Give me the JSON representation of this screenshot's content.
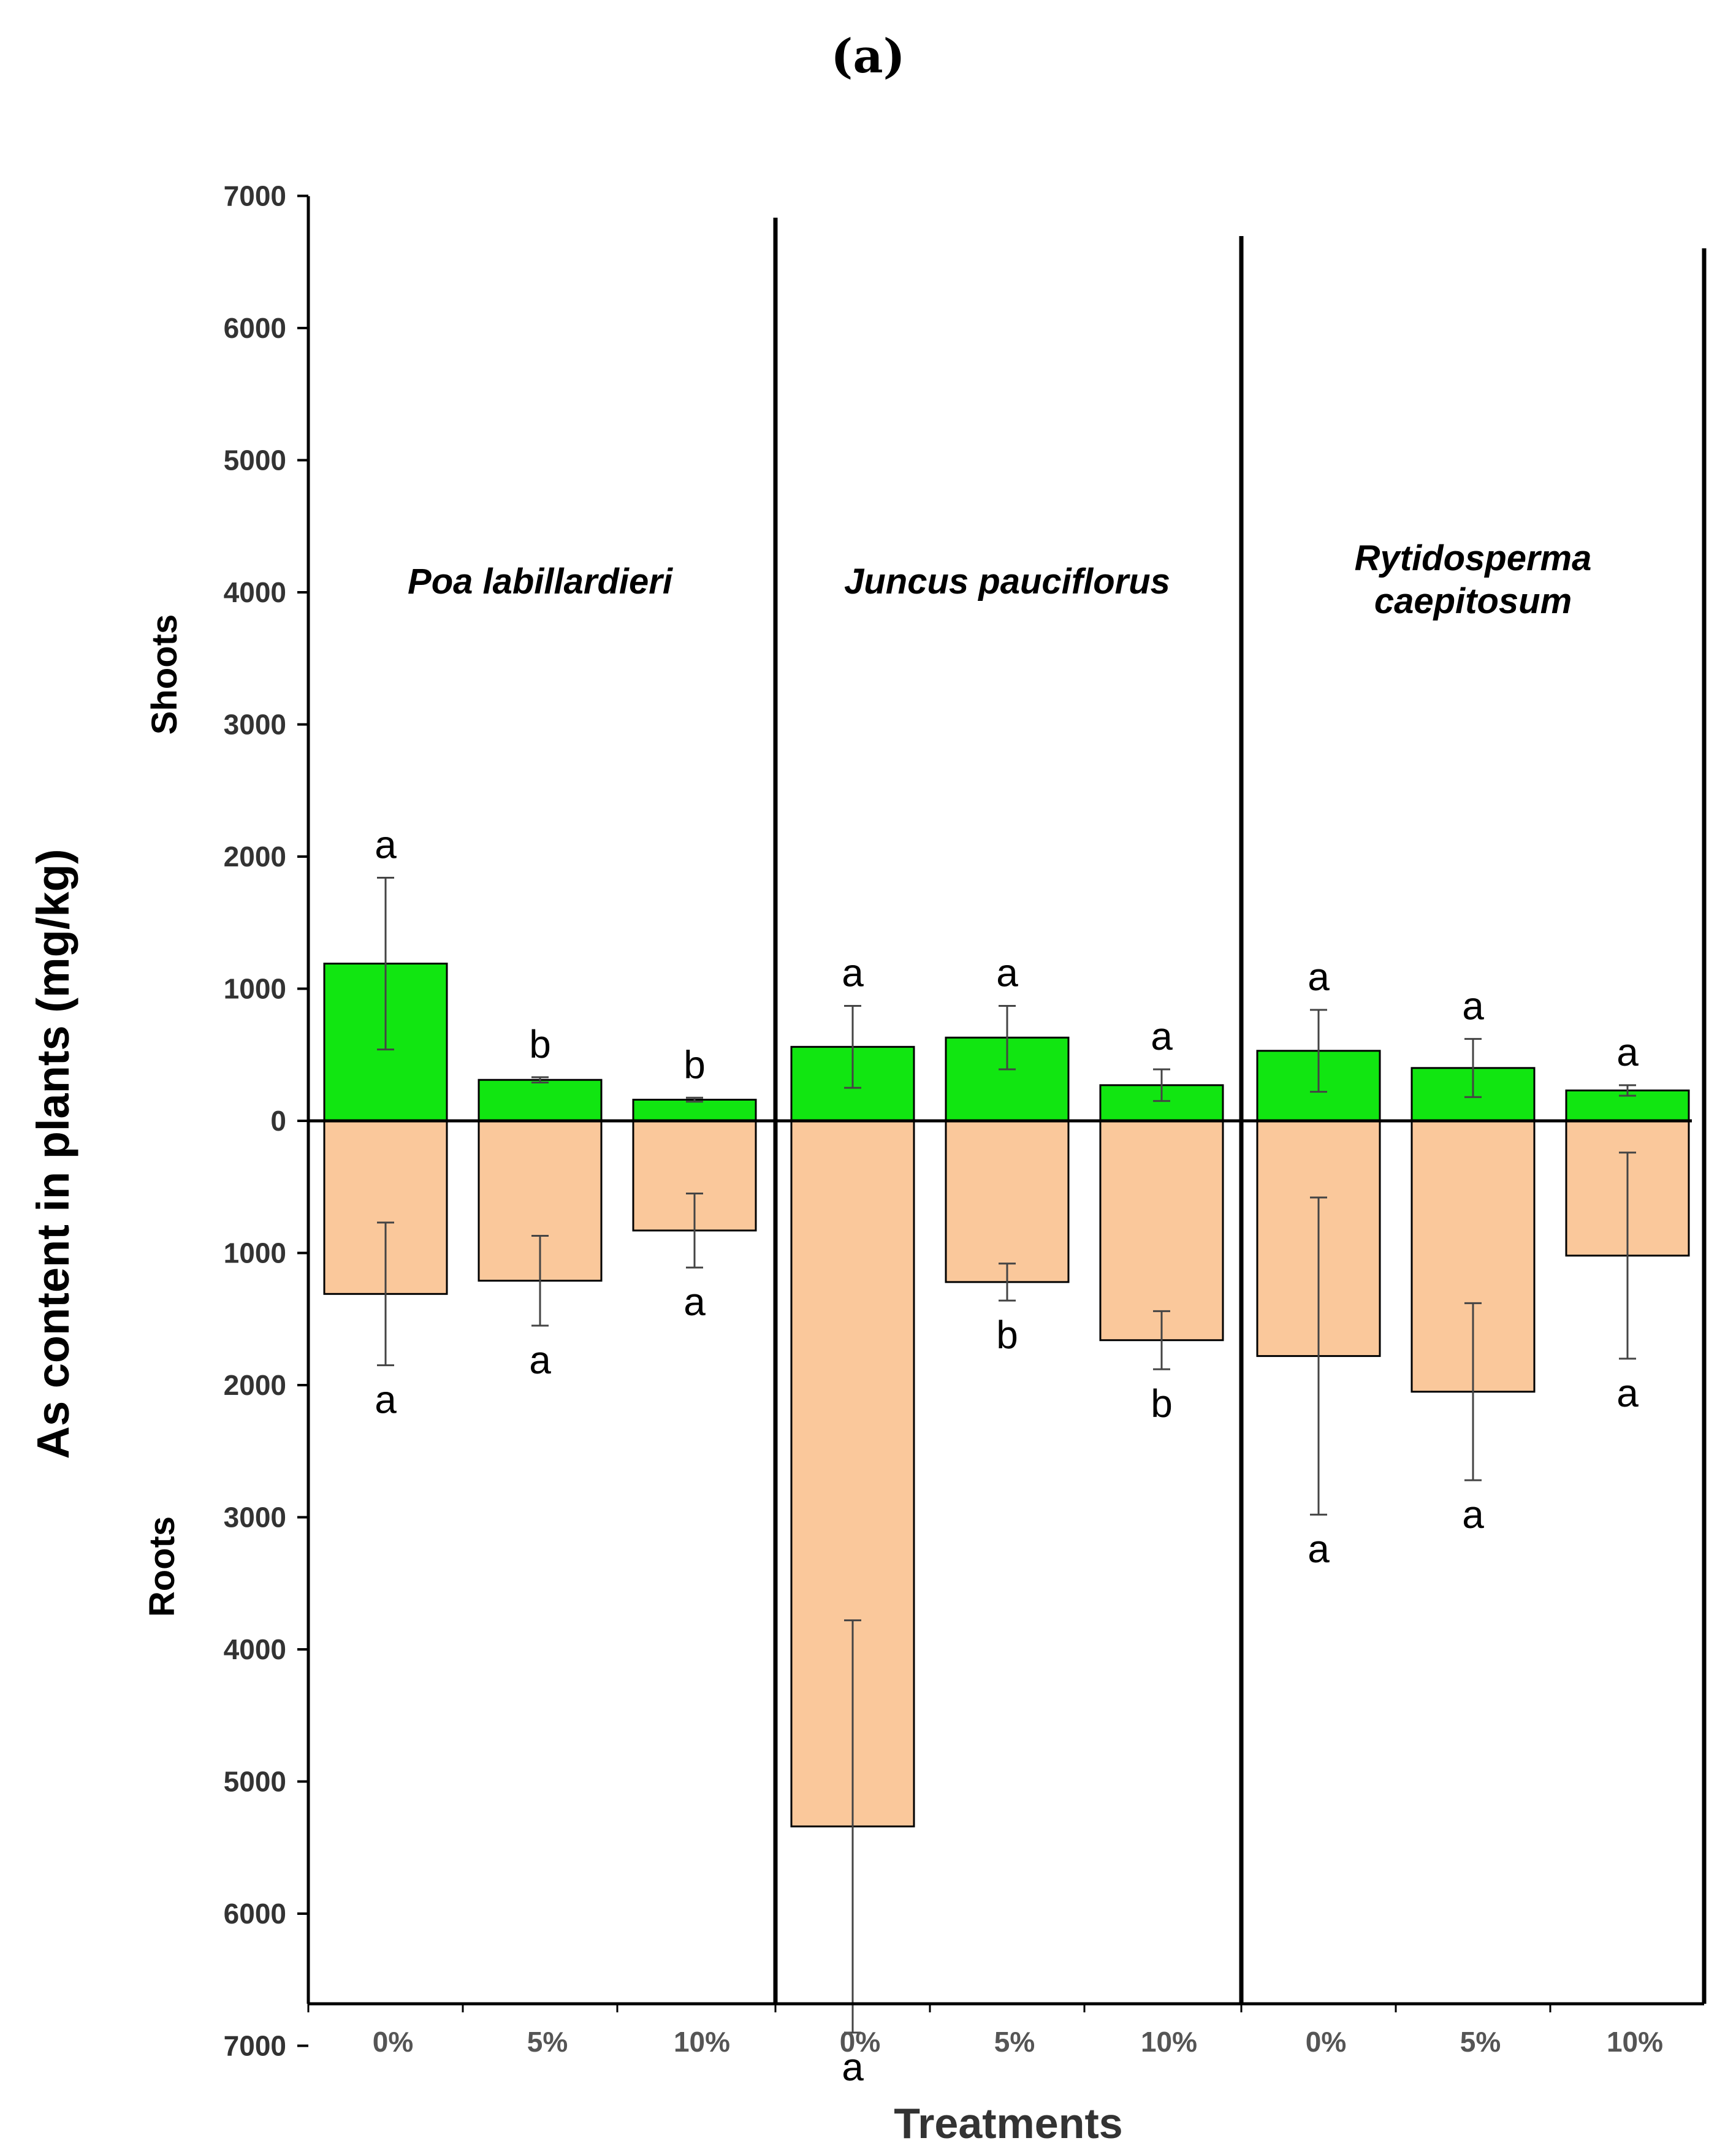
{
  "panel_label": "(a)",
  "chart_data": {
    "type": "bar",
    "ylabel": "As content in plants (mg/kg)",
    "xlabel": "Treatments",
    "top_label": "Shoots",
    "bottom_label": "Roots",
    "ylim": [
      -7500,
      7000
    ],
    "yticks": [
      {
        "value": 7000,
        "label": "7000"
      },
      {
        "value": 6000,
        "label": "6000"
      },
      {
        "value": 5000,
        "label": "5000"
      },
      {
        "value": 4000,
        "label": "4000"
      },
      {
        "value": 3000,
        "label": "3000"
      },
      {
        "value": 2000,
        "label": "2000"
      },
      {
        "value": 1000,
        "label": "1000"
      },
      {
        "value": 0,
        "label": "0"
      },
      {
        "value": -1000,
        "label": "1000"
      },
      {
        "value": -2000,
        "label": "2000"
      },
      {
        "value": -3000,
        "label": "3000"
      },
      {
        "value": -4000,
        "label": "4000"
      },
      {
        "value": -5000,
        "label": "5000"
      },
      {
        "value": -6000,
        "label": "6000"
      },
      {
        "value": -7000,
        "label": "7000"
      }
    ],
    "colors": {
      "shoots": "#11e611",
      "roots": "#fac89b"
    },
    "series": [
      {
        "name": "Shoots"
      },
      {
        "name": "Roots"
      }
    ],
    "groups": [
      {
        "species_lines": [
          "Poa labillardieri"
        ],
        "bars": [
          {
            "treatment": "0%",
            "shoot": 1190,
            "shoot_err": 650,
            "shoot_letter": "a",
            "root": 1310,
            "root_err": 540,
            "root_letter": "a"
          },
          {
            "treatment": "5%",
            "shoot": 310,
            "shoot_err": 20,
            "shoot_letter": "b",
            "root": 1210,
            "root_err": 340,
            "root_letter": "a"
          },
          {
            "treatment": "10%",
            "shoot": 160,
            "shoot_err": 15,
            "shoot_letter": "b",
            "root": 830,
            "root_err": 280,
            "root_letter": "a"
          }
        ]
      },
      {
        "species_lines": [
          "Juncus pauciflorus"
        ],
        "bars": [
          {
            "treatment": "0%",
            "shoot": 560,
            "shoot_err": 310,
            "shoot_letter": "a",
            "root": 5340,
            "root_err": 1560,
            "root_letter": "a"
          },
          {
            "treatment": "5%",
            "shoot": 630,
            "shoot_err": 240,
            "shoot_letter": "a",
            "root": 1220,
            "root_err": 140,
            "root_letter": "b"
          },
          {
            "treatment": "10%",
            "shoot": 270,
            "shoot_err": 120,
            "shoot_letter": "a",
            "root": 1660,
            "root_err": 220,
            "root_letter": "b"
          }
        ]
      },
      {
        "species_lines": [
          "Rytidosperma",
          "caepitosum"
        ],
        "bars": [
          {
            "treatment": "0%",
            "shoot": 530,
            "shoot_err": 310,
            "shoot_letter": "a",
            "root": 1780,
            "root_err": 1200,
            "root_letter": "a"
          },
          {
            "treatment": "5%",
            "shoot": 400,
            "shoot_err": 220,
            "shoot_letter": "a",
            "root": 2050,
            "root_err": 670,
            "root_letter": "a"
          },
          {
            "treatment": "10%",
            "shoot": 230,
            "shoot_err": 40,
            "shoot_letter": "a",
            "root": 1020,
            "root_err": 780,
            "root_letter": "a"
          }
        ]
      }
    ]
  }
}
